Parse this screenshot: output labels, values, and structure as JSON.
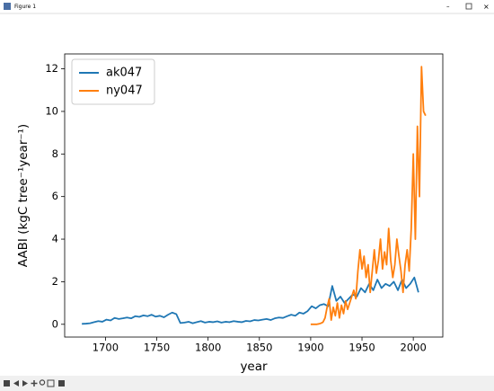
{
  "window": {
    "title": "Figure 1"
  },
  "chart_data": {
    "type": "line",
    "xlabel": "year",
    "ylabel": "AABI (kgC tree⁻¹year⁻¹)",
    "xlim": [
      1660.25,
      2028.75
    ],
    "xticks": [
      1700,
      1750,
      1800,
      1850,
      1900,
      1950,
      2000
    ],
    "ylim": [
      -0.6,
      12.7
    ],
    "yticks": [
      0,
      2,
      4,
      6,
      8,
      10,
      12
    ],
    "grid": false,
    "legend": "upper left",
    "series": [
      {
        "name": "ak047",
        "color": "#1f77b4",
        "x": [
          1677,
          1681,
          1685,
          1689,
          1693,
          1697,
          1701,
          1705,
          1709,
          1713,
          1717,
          1721,
          1725,
          1729,
          1733,
          1737,
          1741,
          1745,
          1749,
          1753,
          1757,
          1761,
          1765,
          1769,
          1773,
          1777,
          1781,
          1785,
          1789,
          1793,
          1797,
          1801,
          1805,
          1809,
          1813,
          1817,
          1821,
          1825,
          1829,
          1833,
          1837,
          1841,
          1845,
          1849,
          1853,
          1857,
          1861,
          1865,
          1869,
          1873,
          1877,
          1881,
          1885,
          1889,
          1893,
          1897,
          1901,
          1905,
          1909,
          1913,
          1917,
          1921,
          1925,
          1929,
          1933,
          1937,
          1941,
          1945,
          1949,
          1953,
          1957,
          1961,
          1965,
          1969,
          1973,
          1977,
          1981,
          1985,
          1989,
          1993,
          1997,
          2001,
          2005
        ],
        "values": [
          0.02,
          0.03,
          0.05,
          0.1,
          0.15,
          0.12,
          0.22,
          0.18,
          0.3,
          0.25,
          0.28,
          0.32,
          0.28,
          0.38,
          0.35,
          0.42,
          0.38,
          0.45,
          0.36,
          0.4,
          0.33,
          0.45,
          0.55,
          0.48,
          0.06,
          0.08,
          0.12,
          0.05,
          0.1,
          0.15,
          0.08,
          0.12,
          0.1,
          0.14,
          0.08,
          0.12,
          0.1,
          0.15,
          0.12,
          0.1,
          0.16,
          0.14,
          0.2,
          0.18,
          0.22,
          0.25,
          0.2,
          0.28,
          0.32,
          0.3,
          0.38,
          0.45,
          0.4,
          0.55,
          0.5,
          0.62,
          0.85,
          0.75,
          0.9,
          0.95,
          0.85,
          1.8,
          1.1,
          1.3,
          1.0,
          1.2,
          1.4,
          1.3,
          1.7,
          1.5,
          1.9,
          1.6,
          2.1,
          1.7,
          1.9,
          1.8,
          2.0,
          1.6,
          2.1,
          1.7,
          1.9,
          2.2,
          1.5
        ]
      },
      {
        "name": "ny047",
        "color": "#ff7f0e",
        "x": [
          1900,
          1902,
          1904,
          1906,
          1908,
          1910,
          1912,
          1914,
          1916,
          1918,
          1920,
          1922,
          1924,
          1926,
          1928,
          1930,
          1932,
          1934,
          1936,
          1938,
          1940,
          1942,
          1944,
          1946,
          1948,
          1950,
          1952,
          1954,
          1956,
          1958,
          1960,
          1962,
          1964,
          1966,
          1968,
          1970,
          1972,
          1974,
          1976,
          1978,
          1980,
          1982,
          1984,
          1986,
          1988,
          1990,
          1992,
          1994,
          1996,
          1998,
          2000,
          2002,
          2004,
          2006,
          2008,
          2010,
          2012
        ],
        "values": [
          0,
          0,
          0,
          0,
          0.02,
          0.05,
          0.1,
          0.3,
          0.8,
          1.2,
          0.2,
          0.8,
          0.4,
          1.0,
          0.3,
          0.9,
          0.5,
          1.1,
          0.7,
          1.0,
          1.3,
          1.6,
          1.2,
          2.5,
          3.5,
          2.6,
          3.2,
          2.2,
          2.8,
          1.5,
          2.5,
          3.5,
          2.4,
          3.0,
          4.0,
          2.6,
          3.4,
          2.8,
          4.5,
          3.0,
          2.2,
          2.8,
          4.0,
          3.2,
          2.5,
          1.5,
          2.8,
          3.5,
          2.5,
          4.5,
          8.0,
          4.0,
          9.3,
          6.0,
          12.1,
          10.0,
          9.8
        ]
      }
    ]
  }
}
